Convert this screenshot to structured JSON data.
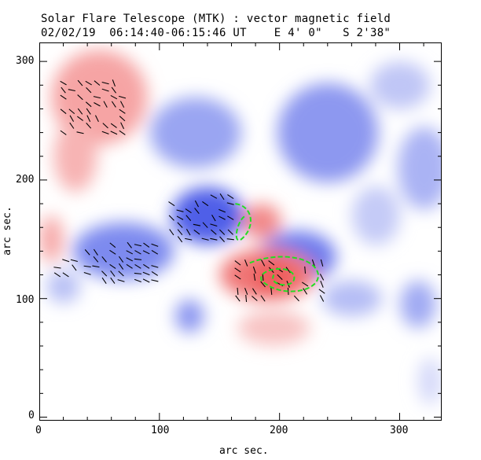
{
  "chart_data": {
    "type": "heatmap",
    "title": "Solar Flare Telescope (MTK) : vector magnetic field",
    "subtitle": "02/02/19  06:14:40-06:15:46 UT    E 4' 0\"   S 2'38\"",
    "xlabel": "arc sec.",
    "ylabel": "arc sec.",
    "xlim": [
      0,
      335
    ],
    "ylim": [
      -3,
      316
    ],
    "xticks": [
      "0",
      "100",
      "200",
      "300"
    ],
    "yticks": [
      "0",
      "100",
      "200",
      "300"
    ],
    "colors": {
      "positive": "#f26a6a",
      "negative": "#5a6af0",
      "contour": "#22dd22",
      "vector": "#000000"
    }
  }
}
